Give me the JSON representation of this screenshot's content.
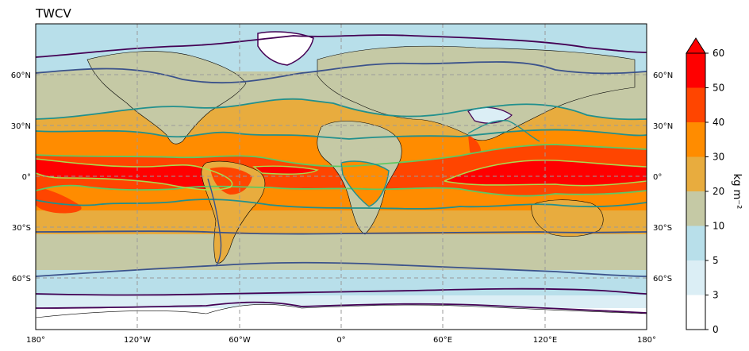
{
  "map": {
    "title": "TWCV",
    "lon_ticks": [
      "180°",
      "120°W",
      "60°W",
      "0°",
      "60°E",
      "120°E",
      "180°"
    ],
    "lat_ticks": [
      "60°N",
      "30°N",
      "0°",
      "30°S",
      "60°S"
    ]
  },
  "colorbar": {
    "label": "kg m⁻²",
    "ticks": [
      "0",
      "3",
      "5",
      "10",
      "20",
      "30",
      "40",
      "50",
      "60"
    ],
    "colors": [
      "#ffffff",
      "#dbeef5",
      "#b8dfea",
      "#c5c9a5",
      "#e8ac3e",
      "#ff8c00",
      "#ff4500",
      "#ff0000"
    ],
    "extend_color": "#ff0000"
  },
  "contours": {
    "colors": [
      "#440154",
      "#3b528b",
      "#21908d",
      "#5dc963",
      "#a9db4f"
    ]
  }
}
